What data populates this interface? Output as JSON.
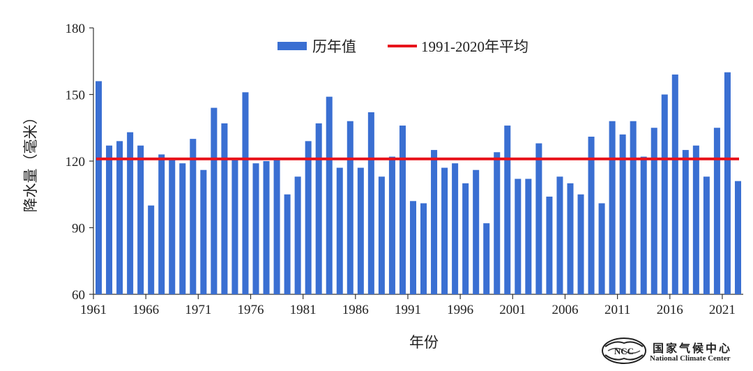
{
  "chart_data": {
    "type": "bar",
    "xlabel": "年份",
    "ylabel": "降水量（毫米）",
    "ylim": [
      60,
      180
    ],
    "yticks": [
      60,
      90,
      120,
      150,
      180
    ],
    "xtick_labels": [
      "1961",
      "1966",
      "1971",
      "1976",
      "1981",
      "1986",
      "1991",
      "1996",
      "2001",
      "2006",
      "2011",
      "2016",
      "2021"
    ],
    "x_start": 1961,
    "x_end": 2022,
    "series": [
      {
        "name": "历年值",
        "color": "#3a6fd2",
        "values": [
          156,
          127,
          129,
          133,
          127,
          100,
          123,
          121,
          119,
          130,
          116,
          144,
          137,
          121,
          151,
          119,
          120,
          121,
          105,
          113,
          129,
          137,
          149,
          117,
          138,
          117,
          142,
          113,
          122,
          136,
          102,
          101,
          125,
          117,
          119,
          110,
          116,
          92,
          124,
          136,
          112,
          112,
          128,
          104,
          113,
          110,
          105,
          131,
          101,
          138,
          132,
          138,
          122,
          135,
          150,
          159,
          125,
          127,
          113,
          135,
          160,
          111
        ]
      },
      {
        "name": "1991-2020年平均",
        "color": "#e8141c",
        "type": "hline",
        "value": 121
      }
    ],
    "legend_position": "top-center"
  },
  "logo": {
    "name_cn": "国家气候中心",
    "name_en": "National Climate Center",
    "emblem_letters": "NCC"
  }
}
